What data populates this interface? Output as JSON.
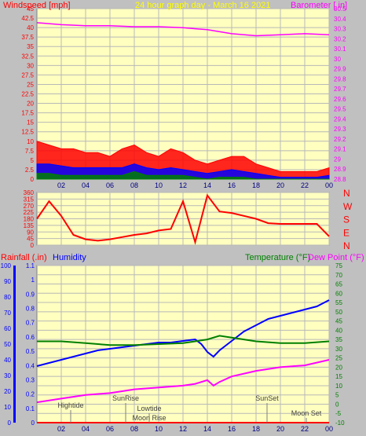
{
  "header": {
    "wind_label": "Windspeed [mph]",
    "title": "24 hour graph day - March 16 2021",
    "baro_label": "Barometer [ in]"
  },
  "x_ticks": [
    "02",
    "04",
    "06",
    "08",
    "10",
    "12",
    "14",
    "16",
    "18",
    "20",
    "22",
    "00"
  ],
  "colors": {
    "background": "#c0c0c0",
    "plot_bg": "#ffffc0",
    "grid": "#b8b8b8",
    "wind": "#ff0000",
    "wind_avg": "#0000ff",
    "wind_low": "#008000",
    "baro": "#ff00ff",
    "direction": "#ff0000",
    "humidity": "#0000ff",
    "temperature": "#008000",
    "dewpoint": "#ff00ff",
    "rain_axis": "#0000ff"
  },
  "chart_data": [
    {
      "type": "line",
      "name": "wind_baro",
      "xlabel": "",
      "x_ticks": [
        "02",
        "04",
        "06",
        "08",
        "10",
        "12",
        "14",
        "16",
        "18",
        "20",
        "22",
        "00"
      ],
      "y_left": {
        "label": "Windspeed [mph]",
        "ylim": [
          0,
          45
        ],
        "ticks": [
          0,
          2.5,
          5,
          7.5,
          10,
          12.5,
          15,
          17.5,
          20,
          22.5,
          25,
          27.5,
          30,
          32.5,
          35,
          37.5,
          40,
          42.5,
          45
        ],
        "tick_labels": [
          "0",
          "2.5",
          "5",
          "7.5",
          "10",
          "12.5",
          "15",
          "17.5",
          "20",
          "22.5",
          "25",
          "27.5",
          "30",
          "32.5",
          "35",
          "37.5",
          "40",
          "42.5",
          "45"
        ]
      },
      "y_right": {
        "label": "Barometer [ in]",
        "ylim": [
          28.8,
          30.5
        ],
        "ticks": [
          28.8,
          28.9,
          29.0,
          29.1,
          29.2,
          29.3,
          29.4,
          29.5,
          29.6,
          29.7,
          29.8,
          29.9,
          30.0,
          30.1,
          30.2,
          30.3,
          30.4,
          30.5
        ],
        "tick_labels": [
          "28.8",
          "28.9",
          "29",
          "29.1",
          "29.2",
          "29.3",
          "29.4",
          "29.5",
          "29.6",
          "29.7",
          "29.8",
          "29.9",
          "30",
          "30.1",
          "30.2",
          "30.3",
          "30.4",
          "30.5"
        ]
      },
      "series": [
        {
          "name": "Windspeed",
          "role": "gust",
          "axis": "left",
          "x": [
            0,
            1,
            2,
            3,
            4,
            5,
            6,
            7,
            8,
            9,
            10,
            11,
            12,
            13,
            14,
            15,
            16,
            17,
            18,
            19,
            20,
            21,
            22,
            23,
            24
          ],
          "y": [
            10,
            9,
            8,
            8,
            7,
            7,
            6,
            8,
            9,
            7,
            6,
            8,
            7,
            5,
            4,
            5,
            6,
            6,
            4,
            3,
            2,
            2,
            2,
            2,
            3
          ]
        },
        {
          "name": "Windspeed",
          "role": "avg",
          "axis": "left",
          "x": [
            0,
            1,
            2,
            3,
            4,
            5,
            6,
            7,
            8,
            9,
            10,
            11,
            12,
            13,
            14,
            15,
            16,
            17,
            18,
            19,
            20,
            21,
            22,
            23,
            24
          ],
          "y": [
            4,
            4,
            3.5,
            3,
            3,
            3,
            3,
            3,
            4,
            3,
            2.5,
            3,
            2.5,
            2,
            1.5,
            2,
            2.5,
            2,
            1.5,
            1,
            0.5,
            0.5,
            0.5,
            0.5,
            1
          ]
        },
        {
          "name": "Windspeed",
          "role": "low",
          "axis": "left",
          "x": [
            0,
            1,
            2,
            3,
            4,
            5,
            6,
            7,
            8,
            9,
            10,
            11,
            12,
            13,
            14,
            15,
            16,
            17,
            18,
            19,
            20,
            21,
            22,
            23,
            24
          ],
          "y": [
            1.5,
            1.5,
            1,
            1,
            1,
            1,
            1,
            1,
            2,
            1,
            1,
            1,
            1,
            0.5,
            0,
            0.5,
            0.5,
            0.5,
            0,
            0,
            0,
            0,
            0,
            0,
            0
          ]
        },
        {
          "name": "Barometer",
          "axis": "right",
          "x": [
            0,
            2,
            4,
            6,
            8,
            10,
            12,
            14,
            16,
            18,
            20,
            22,
            24
          ],
          "y": [
            30.36,
            30.34,
            30.33,
            30.33,
            30.32,
            30.32,
            30.31,
            30.29,
            30.25,
            30.23,
            30.24,
            30.25,
            30.24
          ]
        }
      ]
    },
    {
      "type": "line",
      "name": "wind_direction",
      "x_ticks": [
        "02",
        "04",
        "06",
        "08",
        "10",
        "12",
        "14",
        "16",
        "18",
        "20",
        "22",
        "00"
      ],
      "y_left": {
        "ylim": [
          0,
          360
        ],
        "ticks": [
          0,
          45,
          90,
          135,
          180,
          225,
          270,
          315,
          360
        ],
        "tick_labels": [
          "0",
          "45",
          "90",
          "135",
          "180",
          "225",
          "270",
          "315",
          "360"
        ]
      },
      "y_right": {
        "tick_labels": [
          "N",
          "W",
          "S",
          "E",
          "N"
        ]
      },
      "series": [
        {
          "name": "Wind direction",
          "x": [
            0,
            1,
            2,
            3,
            4,
            5,
            6,
            7,
            8,
            9,
            10,
            11,
            12,
            13,
            14,
            15,
            16,
            17,
            18,
            19,
            20,
            21,
            22,
            23,
            24
          ],
          "y": [
            180,
            300,
            200,
            70,
            40,
            30,
            40,
            55,
            70,
            80,
            100,
            110,
            300,
            20,
            340,
            230,
            220,
            200,
            180,
            150,
            145,
            145,
            145,
            145,
            60
          ]
        }
      ]
    },
    {
      "type": "line",
      "name": "temp_hum",
      "x_ticks": [
        "02",
        "04",
        "06",
        "08",
        "10",
        "12",
        "14",
        "16",
        "18",
        "20",
        "22",
        "00"
      ],
      "annotations": [
        "Hightide",
        "SunRise",
        "Lowtide",
        "Moon Rise",
        "SunSet",
        "Moon Set"
      ],
      "y_humidity": {
        "label": "Humidity",
        "ylim": [
          0,
          100
        ],
        "ticks": [
          0,
          10,
          20,
          30,
          40,
          50,
          60,
          70,
          80,
          90,
          100
        ],
        "tick_labels": [
          "0",
          "10",
          "20",
          "30",
          "40",
          "50",
          "60",
          "70",
          "80",
          "90",
          "100"
        ]
      },
      "y_rain": {
        "label": "Rainfall (.in)",
        "ylim": [
          0,
          1.1
        ],
        "tick_labels": [
          "0",
          "0.1",
          "0.2",
          "0.3",
          "0.4",
          "0.5",
          "0.6",
          "0.7",
          "0.8",
          "0.9",
          "1",
          "1.1"
        ]
      },
      "y_temp": {
        "label": "Temperature (°F)",
        "ylim": [
          -10,
          75
        ],
        "ticks": [
          -10,
          -5,
          0,
          5,
          10,
          15,
          20,
          25,
          30,
          35,
          40,
          45,
          50,
          55,
          60,
          65,
          70,
          75
        ],
        "tick_labels": [
          "-10",
          "-5",
          "0",
          "5",
          "10",
          "15",
          "20",
          "25",
          "30",
          "35",
          "40",
          "45",
          "50",
          "55",
          "60",
          "65",
          "70",
          "75"
        ]
      },
      "dew_label": "Dew Point (°F)",
      "series": [
        {
          "name": "Humidity",
          "axis": "humidity",
          "x": [
            0,
            1,
            2,
            3,
            4,
            5,
            6,
            7,
            8,
            9,
            10,
            11,
            12,
            13,
            13.5,
            14,
            14.5,
            15,
            16,
            17,
            18,
            19,
            20,
            21,
            22,
            23,
            24
          ],
          "y": [
            36,
            38,
            40,
            42,
            44,
            46,
            47,
            48,
            49,
            50,
            51,
            51,
            52,
            53,
            50,
            45,
            42,
            46,
            52,
            58,
            62,
            66,
            68,
            70,
            72,
            74,
            78
          ]
        },
        {
          "name": "Temperature",
          "axis": "temp",
          "x": [
            0,
            2,
            4,
            6,
            8,
            10,
            12,
            13,
            14,
            15,
            16,
            18,
            20,
            22,
            24
          ],
          "y": [
            34,
            34,
            33,
            32,
            32,
            32.5,
            33,
            34,
            35,
            37,
            36,
            34,
            33,
            33,
            34
          ]
        },
        {
          "name": "Dew Point",
          "axis": "temp",
          "x": [
            0,
            2,
            4,
            6,
            8,
            10,
            12,
            13,
            14,
            14.5,
            15,
            16,
            18,
            20,
            22,
            24
          ],
          "y": [
            1,
            3,
            5,
            6,
            8,
            9,
            10,
            11,
            13,
            10,
            12,
            15,
            18,
            20,
            21,
            24
          ]
        },
        {
          "name": "Rainfall",
          "axis": "rain",
          "x": [
            0,
            24
          ],
          "y": [
            0,
            0
          ]
        }
      ]
    }
  ]
}
